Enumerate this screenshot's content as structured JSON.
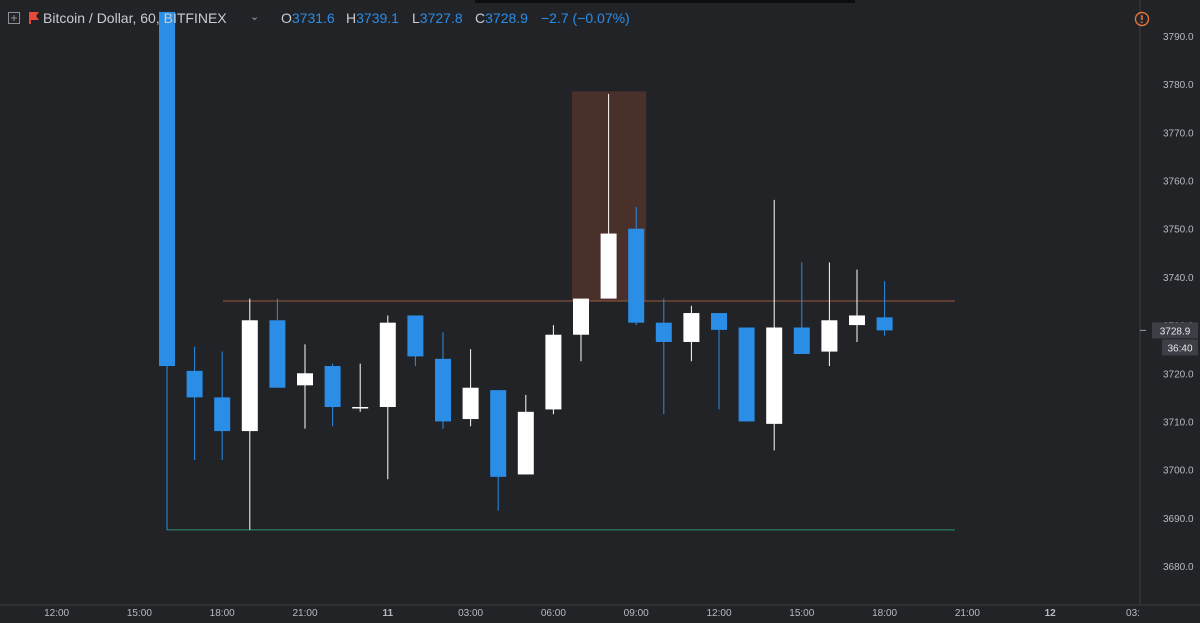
{
  "header": {
    "symbol": "Bitcoin / Dollar, 60, BITFINEX",
    "o_label": "O",
    "o_value": "3731.6",
    "h_label": "H",
    "h_value": "3739.1",
    "l_label": "L",
    "l_value": "3727.8",
    "c_label": "C",
    "c_value": "3728.9",
    "change": "−2.7 (−0.07%)"
  },
  "colors": {
    "background": "#222327",
    "bear": "#2a8de6",
    "bull": "#ffffff",
    "resistance_line": "#9a5a3c",
    "support_line": "#2e8f68",
    "highlight_box": "#4a302a",
    "alert": "#e8743a"
  },
  "price_axis": {
    "ticks": [
      "3790.0",
      "3780.0",
      "3770.0",
      "3760.0",
      "3750.0",
      "3740.0",
      "3730.0",
      "3720.0",
      "3710.0",
      "3700.0",
      "3690.0",
      "3680.0"
    ],
    "last_price": "3728.9",
    "countdown": "36:40"
  },
  "time_axis": {
    "ticks": [
      "12:00",
      "15:00",
      "18:00",
      "21:00",
      "11",
      "03:00",
      "06:00",
      "09:00",
      "12:00",
      "15:00",
      "18:00",
      "21:00",
      "12",
      "03:"
    ]
  },
  "chart_data": {
    "type": "candlestick",
    "interval": "60",
    "exchange": "BITFINEX",
    "ylim": [
      3676,
      3793
    ],
    "candles": [
      {
        "time": "10 16:00",
        "open": 3795.0,
        "high": 3795.0,
        "low": 3687.5,
        "close": 3721.5
      },
      {
        "time": "10 17:00",
        "open": 3720.5,
        "high": 3725.5,
        "low": 3702.0,
        "close": 3715.0
      },
      {
        "time": "10 18:00",
        "open": 3715.0,
        "high": 3724.5,
        "low": 3702.0,
        "close": 3708.0
      },
      {
        "time": "10 19:00",
        "open": 3708.0,
        "high": 3735.5,
        "low": 3687.5,
        "close": 3731.0
      },
      {
        "time": "10 20:00",
        "open": 3731.0,
        "high": 3735.5,
        "low": 3717.0,
        "close": 3717.0
      },
      {
        "time": "10 21:00",
        "open": 3717.5,
        "high": 3726.0,
        "low": 3708.5,
        "close": 3720.0
      },
      {
        "time": "10 22:00",
        "open": 3721.5,
        "high": 3722.0,
        "low": 3709.0,
        "close": 3713.0
      },
      {
        "time": "10 23:00",
        "open": 3713.0,
        "high": 3722.0,
        "low": 3712.0,
        "close": 3713.0
      },
      {
        "time": "11 00:00",
        "open": 3713.0,
        "high": 3732.0,
        "low": 3698.0,
        "close": 3730.5
      },
      {
        "time": "11 01:00",
        "open": 3732.0,
        "high": 3732.0,
        "low": 3721.5,
        "close": 3723.5
      },
      {
        "time": "11 02:00",
        "open": 3723.0,
        "high": 3728.5,
        "low": 3708.5,
        "close": 3710.0
      },
      {
        "time": "11 03:00",
        "open": 3710.5,
        "high": 3725.0,
        "low": 3709.0,
        "close": 3717.0
      },
      {
        "time": "11 04:00",
        "open": 3716.5,
        "high": 3716.5,
        "low": 3691.5,
        "close": 3698.5
      },
      {
        "time": "11 05:00",
        "open": 3699.0,
        "high": 3715.5,
        "low": 3699.0,
        "close": 3712.0
      },
      {
        "time": "11 06:00",
        "open": 3712.5,
        "high": 3730.0,
        "low": 3711.5,
        "close": 3728.0
      },
      {
        "time": "11 07:00",
        "open": 3728.0,
        "high": 3735.5,
        "low": 3722.5,
        "close": 3735.5
      },
      {
        "time": "11 08:00",
        "open": 3735.5,
        "high": 3778.0,
        "low": 3735.5,
        "close": 3749.0
      },
      {
        "time": "11 09:00",
        "open": 3750.0,
        "high": 3754.5,
        "low": 3730.0,
        "close": 3730.5
      },
      {
        "time": "11 10:00",
        "open": 3730.5,
        "high": 3735.5,
        "low": 3711.5,
        "close": 3726.5
      },
      {
        "time": "11 11:00",
        "open": 3726.5,
        "high": 3734.0,
        "low": 3722.5,
        "close": 3732.5
      },
      {
        "time": "11 12:00",
        "open": 3732.5,
        "high": 3732.5,
        "low": 3712.5,
        "close": 3729.0
      },
      {
        "time": "11 13:00",
        "open": 3729.5,
        "high": 3729.5,
        "low": 3710.0,
        "close": 3710.0
      },
      {
        "time": "11 14:00",
        "open": 3709.5,
        "high": 3756.0,
        "low": 3704.0,
        "close": 3729.5
      },
      {
        "time": "11 15:00",
        "open": 3729.5,
        "high": 3743.0,
        "low": 3724.0,
        "close": 3724.0
      },
      {
        "time": "11 16:00",
        "open": 3724.5,
        "high": 3743.0,
        "low": 3721.5,
        "close": 3731.0
      },
      {
        "time": "11 17:00",
        "open": 3730.0,
        "high": 3741.5,
        "low": 3726.5,
        "close": 3732.0
      },
      {
        "time": "11 18:00",
        "open": 3731.6,
        "high": 3739.1,
        "low": 3727.8,
        "close": 3728.9
      }
    ],
    "resistance_level": 3735.0,
    "support_level": 3687.5,
    "highlight_zone": {
      "from": "11 07:00",
      "to": "11 09:00",
      "low": 3735.0,
      "high": 3778.5
    }
  }
}
